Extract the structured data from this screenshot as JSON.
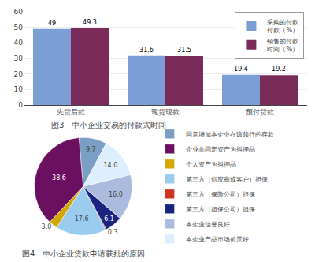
{
  "chart_data": [
    {
      "type": "bar",
      "title": "图3   中小企业交易的付款式时间",
      "categories": [
        "先货后款",
        "现货现款",
        "预付货款"
      ],
      "series": [
        {
          "name": "采购的付款\n付款（%）",
          "color": "#7B9FD4",
          "values": [
            49,
            31.6,
            19.4
          ]
        },
        {
          "name": "销售的付款\n时间（%）",
          "color": "#7B2B5A",
          "values": [
            49.3,
            31.5,
            19.2
          ]
        }
      ],
      "ylim": [
        0,
        60
      ],
      "yticks": [
        0,
        10,
        20,
        30,
        40,
        50,
        60
      ],
      "grid": true,
      "legend": "upper right",
      "data_labels": true
    },
    {
      "type": "pie",
      "title": "图4   中小企业贷款申请获批的原因",
      "categories": [
        "同意增加本企业在该领行的存款",
        "企业非固定资产为抖押品",
        "个人资产为抖押品",
        "第三方（供应商或客户）担保",
        "第三方（保险公司）担保",
        "第三方（担保公司）担保",
        "本企业信誉良好",
        "本企业产品市场前景好"
      ],
      "values": [
        9.7,
        38.6,
        3.0,
        17.6,
        0.3,
        6.1,
        16.0,
        14.0
      ],
      "value_labels": [
        "9.7",
        "38.6",
        "3.0",
        "17.6",
        "0.3",
        "6.1",
        "16.0",
        "14.0"
      ],
      "colors": [
        "#7B9FC4",
        "#6B1060",
        "#D4A800",
        "#99CCEE",
        "#CC3322",
        "#1A237E",
        "#AABBDD",
        "#DDEEFF"
      ],
      "data_labels": true,
      "legend": "right"
    }
  ]
}
